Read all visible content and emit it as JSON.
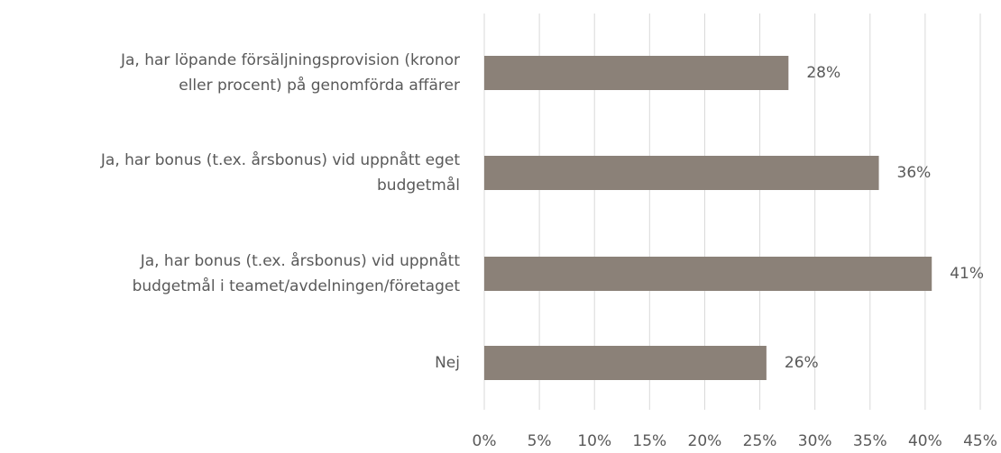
{
  "chart_data": {
    "type": "barh",
    "categories": [
      "Ja, har löpande försäljningsprovision (kronor\neller procent) på genomförda affärer",
      "Ja, har bonus (t.ex. årsbonus) vid uppnått eget\nbudgetmål",
      "Ja, har bonus (t.ex. årsbonus) vid uppnått\nbudgetmål i teamet/avdelningen/företaget",
      "Nej"
    ],
    "values": [
      27.6,
      35.8,
      40.6,
      25.6
    ],
    "value_labels": [
      "28%",
      "36%",
      "41%",
      "26%"
    ],
    "color": "#8b8178",
    "xlim": [
      0,
      45
    ],
    "xticks": [
      {
        "value": 0,
        "label": "0%"
      },
      {
        "value": 5,
        "label": "5%"
      },
      {
        "value": 10,
        "label": "10%"
      },
      {
        "value": 15,
        "label": "15%"
      },
      {
        "value": 20,
        "label": "20%"
      },
      {
        "value": 25,
        "label": "25%"
      },
      {
        "value": 30,
        "label": "30%"
      },
      {
        "value": 35,
        "label": "35%"
      },
      {
        "value": 40,
        "label": "40%"
      },
      {
        "value": 45,
        "label": "45%"
      }
    ],
    "grid": true
  }
}
